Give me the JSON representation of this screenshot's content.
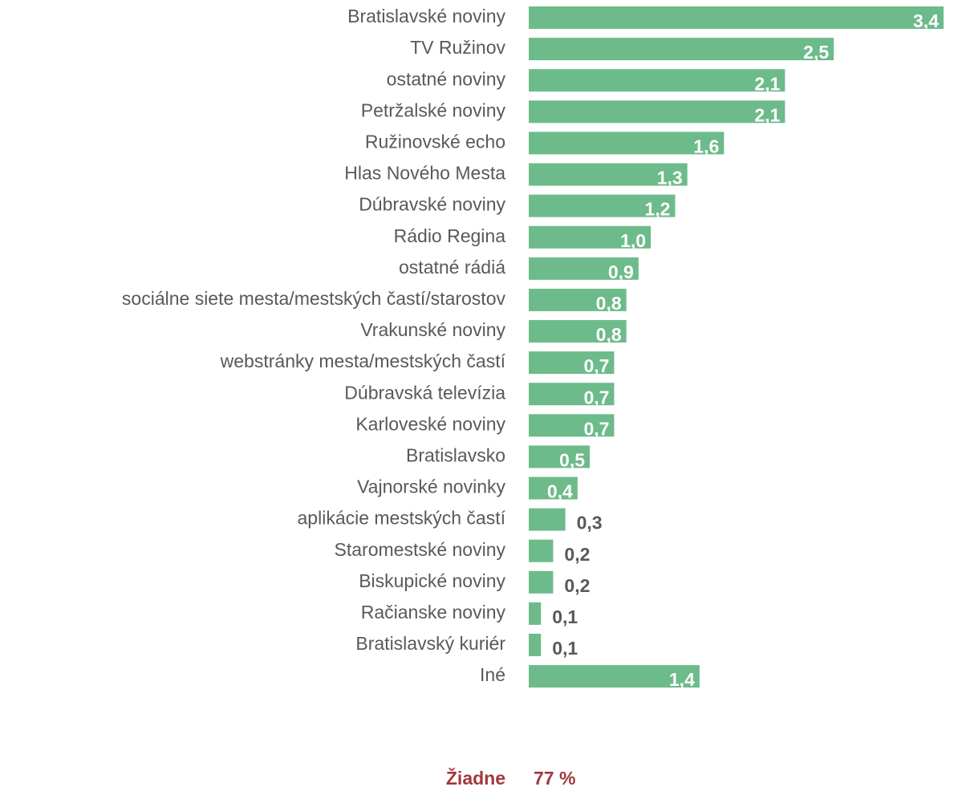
{
  "chart_data": {
    "type": "bar",
    "orientation": "horizontal",
    "color": "#6dbb8a",
    "categories": [
      "Bratislavské noviny",
      "TV Ružinov",
      "ostatné noviny",
      "Petržalské noviny",
      "Ružinovské echo",
      "Hlas Nového Mesta",
      "Dúbravské noviny",
      "Rádio Regina",
      "ostatné rádiá",
      "sociálne siete mesta/mestských častí/starostov",
      "Vrakunské noviny",
      "webstránky mesta/mestských častí",
      "Dúbravská televízia",
      "Karloveské noviny",
      "Bratislavsko",
      "Vajnorské novinky",
      "aplikácie mestských častí",
      "Staromestské noviny",
      "Biskupické noviny",
      "Račianske noviny",
      "Bratislavský kuriér",
      "Iné"
    ],
    "values": [
      3.4,
      2.5,
      2.1,
      2.1,
      1.6,
      1.3,
      1.2,
      1.0,
      0.9,
      0.8,
      0.8,
      0.7,
      0.7,
      0.7,
      0.5,
      0.4,
      0.3,
      0.2,
      0.2,
      0.1,
      0.1,
      1.4
    ],
    "value_labels": [
      "3,4",
      "2,5",
      "2,1",
      "2,1",
      "1,6",
      "1,3",
      "1,2",
      "1,0",
      "0,9",
      "0,8",
      "0,8",
      "0,7",
      "0,7",
      "0,7",
      "0,5",
      "0,4",
      "0,3",
      "0,2",
      "0,2",
      "0,1",
      "0,1",
      "1,4"
    ],
    "footer": {
      "label": "Žiadne",
      "value_label": "77 %"
    }
  }
}
